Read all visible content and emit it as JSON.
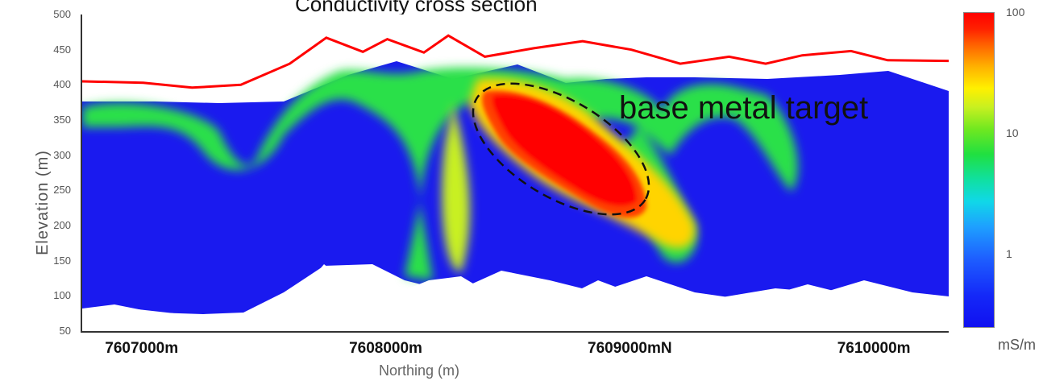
{
  "chart_data": {
    "type": "heatmap",
    "title": "Conductivity cross section",
    "xlabel": "Northing (m)",
    "ylabel": "Elevation (m)",
    "xlim": [
      7606750,
      7610300
    ],
    "ylim": [
      50,
      500
    ],
    "x_ticks": [
      "7607000m",
      "7608000m",
      "7609000mN",
      "7610000m"
    ],
    "x_tick_values": [
      7607000,
      7608000,
      7609000,
      7610000
    ],
    "y_ticks": [
      50,
      100,
      150,
      200,
      250,
      300,
      350,
      400,
      450,
      500
    ],
    "colorbar": {
      "scale": "log",
      "ticks": [
        "1",
        "10",
        "100"
      ],
      "tick_values": [
        1,
        10,
        100
      ],
      "unit": "mS/m"
    },
    "annotations": [
      "base metal target"
    ],
    "series": [
      {
        "kind": "line",
        "color": "#ff0000",
        "points": [
          [
            7606750,
            405
          ],
          [
            7607000,
            403
          ],
          [
            7607200,
            396
          ],
          [
            7607400,
            400
          ],
          [
            7607600,
            430
          ],
          [
            7607750,
            467
          ],
          [
            7607900,
            447
          ],
          [
            7608000,
            465
          ],
          [
            7608150,
            446
          ],
          [
            7608250,
            470
          ],
          [
            7608400,
            440
          ],
          [
            7608600,
            452
          ],
          [
            7608800,
            462
          ],
          [
            7609000,
            450
          ],
          [
            7609200,
            430
          ],
          [
            7609400,
            440
          ],
          [
            7609550,
            430
          ],
          [
            7609700,
            442
          ],
          [
            7609900,
            448
          ],
          [
            7610050,
            435
          ],
          [
            7610300,
            434
          ]
        ]
      }
    ],
    "colors": {
      "background": "#1a1aef",
      "low": "#1010f0",
      "medium": "#20e040",
      "high": "#ff0000",
      "surface_line": "#ff0000"
    }
  }
}
